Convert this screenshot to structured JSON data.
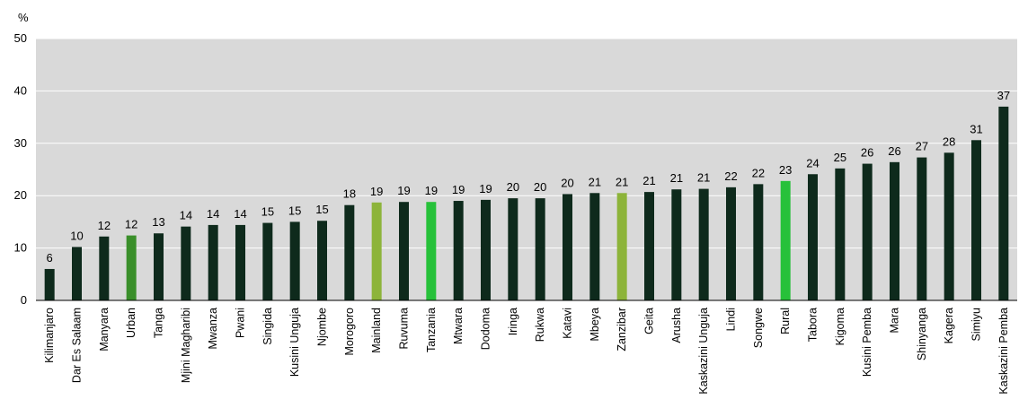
{
  "chart_data": {
    "type": "bar",
    "unit_label": "%",
    "ylim": [
      0,
      50
    ],
    "yticks": [
      0,
      10,
      20,
      30,
      40,
      50
    ],
    "grid": true,
    "categories": [
      "Kilimanjaro",
      "Dar Es Salaam",
      "Manyara",
      "Urban",
      "Tanga",
      "Mjini Magharibi",
      "Mwanza",
      "Pwani",
      "Singida",
      "Kusini Unguja",
      "Njombe",
      "Morogoro",
      "Mainland",
      "Ruvuma",
      "Tanzania",
      "Mtwara",
      "Dodoma",
      "Iringa",
      "Rukwa",
      "Katavi",
      "Mbeya",
      "Zanzibar",
      "Geita",
      "Arusha",
      "Kaskazini Unguja",
      "Lindi",
      "Songwe",
      "Rural",
      "Tabora",
      "Kigoma",
      "Kusini  Pemba",
      "Mara",
      "Shinyanga",
      "Kagera",
      "Simiyu",
      "Kaskazini Pemba"
    ],
    "values": [
      6.0,
      10.2,
      12.2,
      12.4,
      12.8,
      14.1,
      14.4,
      14.4,
      14.8,
      15.0,
      15.2,
      18.2,
      18.7,
      18.8,
      18.8,
      19.0,
      19.2,
      19.5,
      19.5,
      20.3,
      20.5,
      20.5,
      20.7,
      21.2,
      21.3,
      21.6,
      22.2,
      22.8,
      24.1,
      25.2,
      26.1,
      26.4,
      27.3,
      28.2,
      30.6,
      37.0
    ],
    "data_labels": [
      "6",
      "10",
      "12",
      "12",
      "13",
      "14",
      "14",
      "14",
      "15",
      "15",
      "15",
      "18",
      "19",
      "19",
      "19",
      "19",
      "19",
      "20",
      "20",
      "20",
      "21",
      "21",
      "21",
      "21",
      "21",
      "22",
      "22",
      "23",
      "24",
      "25",
      "26",
      "26",
      "27",
      "28",
      "31",
      "37"
    ],
    "highlight": {
      "Urban": "#3a8f2a",
      "Mainland": "#8db43a",
      "Tanzania": "#27c13a",
      "Zanzibar": "#8db43a",
      "Rural": "#27c13a"
    },
    "colors": {
      "bar": "#0e2a1c",
      "plot_background": "#d9d9d9",
      "gridline": "#ffffff"
    }
  }
}
